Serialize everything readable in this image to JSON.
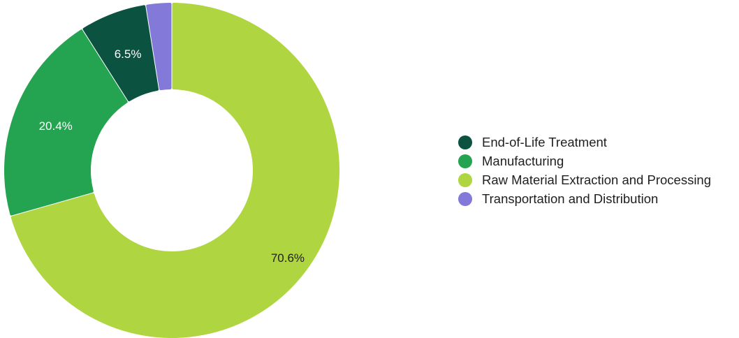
{
  "chart_data": {
    "type": "pie",
    "donut": true,
    "legend_position": "right",
    "series": [
      {
        "name": "End-of-Life Treatment",
        "value": 6.5,
        "label": "6.5%",
        "color": "#0b5240",
        "label_color": "#ffffff"
      },
      {
        "name": "Manufacturing",
        "value": 20.4,
        "label": "20.4%",
        "color": "#24a450",
        "label_color": "#ffffff"
      },
      {
        "name": "Raw Material Extraction and Processing",
        "value": 70.6,
        "label": "70.6%",
        "color": "#afd541",
        "label_color": "#1f1f1f"
      },
      {
        "name": "Transportation and Distribution",
        "value": 2.5,
        "label": "",
        "color": "#8379d9",
        "label_color": "#ffffff"
      }
    ]
  }
}
